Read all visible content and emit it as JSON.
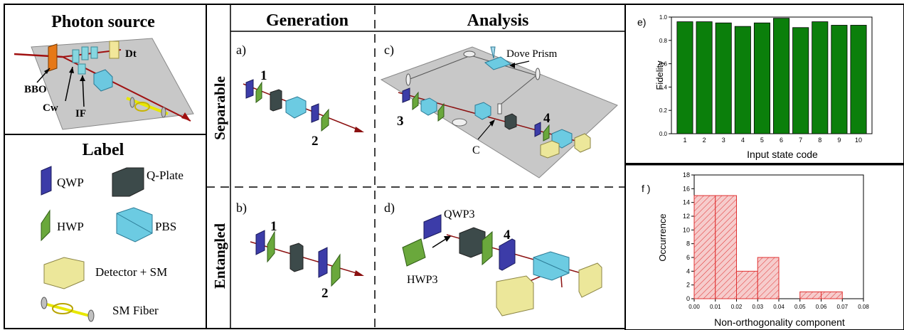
{
  "photon_source": {
    "title": "Photon source",
    "labels": {
      "dt": "Dt",
      "bbo": "BBO",
      "cw": "Cw",
      "if": "IF"
    }
  },
  "legend": {
    "title": "Label",
    "qwp": "QWP",
    "qplate": "Q-Plate",
    "hwp": "HWP",
    "pbs": "PBS",
    "detector": "Detector + SM",
    "fiber": "SM Fiber"
  },
  "columns": {
    "generation": "Generation",
    "analysis": "Analysis"
  },
  "rows": {
    "separable": "Separable",
    "entangled": "Entangled"
  },
  "panels": {
    "a": {
      "tag": "a)",
      "n1": "1",
      "n2": "2"
    },
    "b": {
      "tag": "b)",
      "n1": "1",
      "n2": "2"
    },
    "c": {
      "tag": "c)",
      "dove": "Dove Prism",
      "n3": "3",
      "n4": "4",
      "c_label": "C"
    },
    "d": {
      "tag": "d)",
      "qwp3": "QWP3",
      "hwp3": "HWP3",
      "n4": "4"
    }
  },
  "chart_data": [
    {
      "type": "bar",
      "panel_label": "e)",
      "categories": [
        "1",
        "2",
        "3",
        "4",
        "5",
        "6",
        "7",
        "8",
        "9",
        "10"
      ],
      "values": [
        0.96,
        0.96,
        0.95,
        0.92,
        0.95,
        0.99,
        0.91,
        0.96,
        0.93,
        0.93
      ],
      "xlabel": "Input state code",
      "ylabel": "Fidelity",
      "ylim": [
        0.0,
        1.0
      ],
      "yticks": [
        "0.0",
        "0.2",
        "0.4",
        "0.6",
        "0.8",
        "1.0"
      ],
      "bar_color": "#0b7f0b"
    },
    {
      "type": "bar",
      "panel_label": "f )",
      "bin_edges": [
        0.0,
        0.01,
        0.02,
        0.03,
        0.04,
        0.05,
        0.06,
        0.07
      ],
      "values": [
        15,
        15,
        4,
        6,
        0,
        1,
        1
      ],
      "xlabel": "Non-orthogonality component",
      "ylabel": "Occurrence",
      "xlim": [
        0.0,
        0.08
      ],
      "ylim": [
        0,
        18
      ],
      "xticks": [
        "0.00",
        "0.01",
        "0.02",
        "0.03",
        "0.04",
        "0.05",
        "0.06",
        "0.07",
        "0.08"
      ],
      "yticks": [
        "0",
        "2",
        "4",
        "6",
        "8",
        "10",
        "12",
        "14",
        "16",
        "18"
      ],
      "bar_color": "#e03030"
    }
  ]
}
